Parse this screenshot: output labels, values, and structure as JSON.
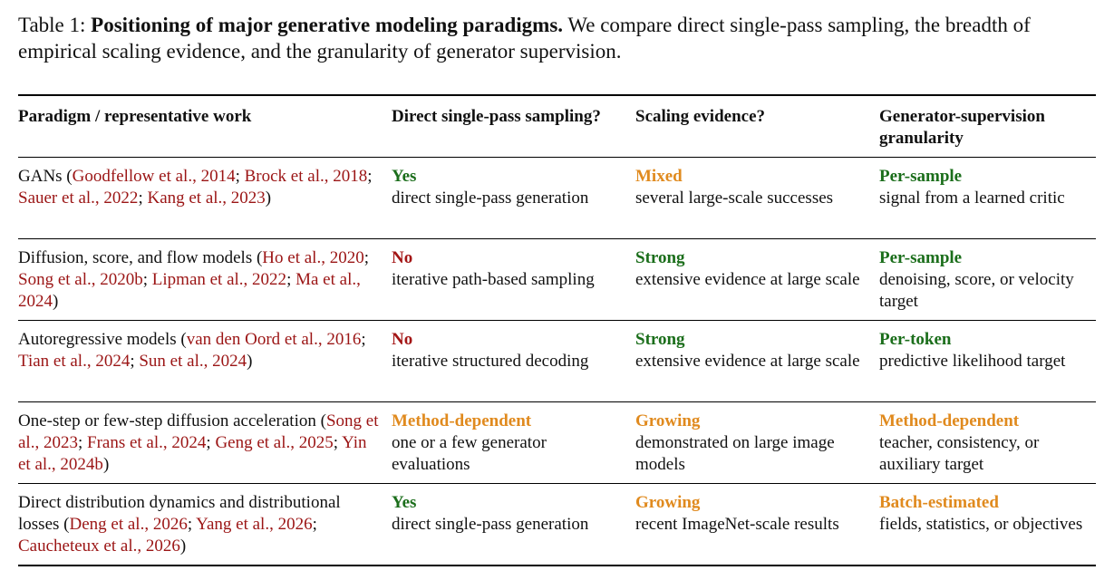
{
  "caption": {
    "label": "Table 1:",
    "title": "Positioning of major generative modeling paradigms.",
    "text": "We compare direct single-pass sampling, the breadth of empirical scaling evidence, and the granularity of generator supervision."
  },
  "table": {
    "header": [
      "Paradigm / representative work",
      "Direct single-pass sampling?",
      "Scaling evidence?",
      "Generator-supervision granularity"
    ],
    "rows": [
      {
        "paradigm": [
          {
            "t": "GANs ("
          },
          {
            "cite": "Goodfellow et al., 2014"
          },
          {
            "t": "; "
          },
          {
            "cite": "Brock et al., 2018"
          },
          {
            "t": "; "
          },
          {
            "cite": "Sauer et al., 2022"
          },
          {
            "t": "; "
          },
          {
            "cite": "Kang et al., 2023"
          },
          {
            "t": ")"
          }
        ],
        "cells": [
          {
            "label": "Yes",
            "color": "#1b6e1b",
            "text": "direct single-pass generation"
          },
          {
            "label": "Mixed",
            "color": "#e08a1e",
            "text": "several large-scale successes"
          },
          {
            "label": "Per-sample",
            "color": "#1b6e1b",
            "text": "signal from a learned critic"
          }
        ]
      },
      {
        "paradigm": [
          {
            "t": "Diffusion, score, and flow models ("
          },
          {
            "cite": "Ho et al., 2020"
          },
          {
            "t": "; "
          },
          {
            "cite": "Song et al., 2020b"
          },
          {
            "t": "; "
          },
          {
            "cite": "Lipman et al., 2022"
          },
          {
            "t": "; "
          },
          {
            "cite": "Ma et al., 2024"
          },
          {
            "t": ")"
          }
        ],
        "cells": [
          {
            "label": "No",
            "color": "#a31515",
            "text": "iterative path-based sampling"
          },
          {
            "label": "Strong",
            "color": "#1b6e1b",
            "text": "extensive evidence at large scale"
          },
          {
            "label": "Per-sample",
            "color": "#1b6e1b",
            "text": "denoising, score, or velocity target"
          }
        ]
      },
      {
        "paradigm": [
          {
            "t": "Autoregressive models ("
          },
          {
            "cite": "van den Oord et al., 2016"
          },
          {
            "t": "; "
          },
          {
            "cite": "Tian et al., 2024"
          },
          {
            "t": "; "
          },
          {
            "cite": "Sun et al., 2024"
          },
          {
            "t": ")"
          }
        ],
        "cells": [
          {
            "label": "No",
            "color": "#a31515",
            "text": "iterative structured decoding"
          },
          {
            "label": "Strong",
            "color": "#1b6e1b",
            "text": "extensive evidence at large scale"
          },
          {
            "label": "Per-token",
            "color": "#1b6e1b",
            "text": "predictive likelihood target"
          }
        ]
      },
      {
        "paradigm": [
          {
            "t": "One-step or few-step diffusion acceleration ("
          },
          {
            "cite": "Song et al., 2023"
          },
          {
            "t": "; "
          },
          {
            "cite": "Frans et al., 2024"
          },
          {
            "t": "; "
          },
          {
            "cite": "Geng et al., 2025"
          },
          {
            "t": "; "
          },
          {
            "cite": "Yin et al., 2024b"
          },
          {
            "t": ")"
          }
        ],
        "cells": [
          {
            "label": "Method-dependent",
            "color": "#e08a1e",
            "text": "one or a few generator evaluations"
          },
          {
            "label": "Growing",
            "color": "#e08a1e",
            "text": "demonstrated on large image models"
          },
          {
            "label": "Method-dependent",
            "color": "#e08a1e",
            "text": "teacher, consistency, or auxiliary target"
          }
        ]
      },
      {
        "paradigm": [
          {
            "t": "Direct distribution dynamics and distributional losses ("
          },
          {
            "cite": "Deng et al., 2026"
          },
          {
            "t": "; "
          },
          {
            "cite": "Yang et al., 2026"
          },
          {
            "t": "; "
          },
          {
            "cite": "Caucheteux et al., 2026"
          },
          {
            "t": ")"
          }
        ],
        "cells": [
          {
            "label": "Yes",
            "color": "#1b6e1b",
            "text": "direct single-pass generation"
          },
          {
            "label": "Growing",
            "color": "#e08a1e",
            "text": "recent ImageNet-scale results"
          },
          {
            "label": "Batch-estimated",
            "color": "#e08a1e",
            "text": "fields, statistics, or objectives"
          }
        ]
      }
    ]
  }
}
